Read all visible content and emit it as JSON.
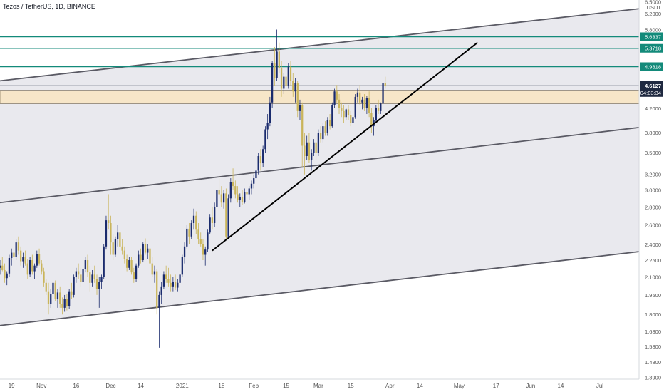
{
  "header": {
    "title": "Tezos / TetherUS, 1D, BINANCE"
  },
  "colors": {
    "up": "#1a2b6d",
    "down": "#c9b45a",
    "channel_fill": "#e9e9ee",
    "channel_line": "#5a5a64",
    "teal": "#138a7a",
    "zone": "#f7e6c8",
    "trend": "#000000"
  },
  "chart_data": {
    "type": "candlestick",
    "title": "Tezos / TetherUS, 1D, BINANCE",
    "y_scale": "log",
    "ylim": [
      1.38,
      6.55
    ],
    "x_range": [
      "2020-10-14",
      "2021-07-18"
    ],
    "currency_label": "USDT",
    "y_ticks": [
      "1.3900",
      "1.4800",
      "1.5800",
      "1.6800",
      "1.8000",
      "1.9500",
      "2.1000",
      "2.2500",
      "2.4000",
      "2.6000",
      "2.8000",
      "3.0000",
      "3.2000",
      "3.5000",
      "3.8000",
      "4.2000",
      "5.8000",
      "6.2000",
      "6.5000"
    ],
    "x_ticks": [
      "19",
      "Nov",
      "16",
      "Dec",
      "14",
      "2021",
      "18",
      "Feb",
      "15",
      "Mar",
      "15",
      "Apr",
      "14",
      "May",
      "17",
      "Jun",
      "14",
      "Jul"
    ],
    "x_tick_dates": [
      "2020-10-19",
      "2020-11-01",
      "2020-11-16",
      "2020-12-01",
      "2020-12-14",
      "2021-01-01",
      "2021-01-18",
      "2021-02-01",
      "2021-02-15",
      "2021-03-01",
      "2021-03-15",
      "2021-04-01",
      "2021-04-14",
      "2021-05-01",
      "2021-05-17",
      "2021-06-01",
      "2021-06-14",
      "2021-07-01"
    ],
    "horizontal_levels": [
      {
        "label": "5.6337",
        "value": 5.6337,
        "style": "teal"
      },
      {
        "label": "5.3718",
        "value": 5.3718,
        "style": "teal"
      },
      {
        "label": "4.9818",
        "value": 4.9818,
        "style": "teal"
      }
    ],
    "last_price": {
      "label": "4.6127",
      "value": 4.6127,
      "countdown": "04:03:34"
    },
    "zone": {
      "from": 4.28,
      "to": 4.52
    },
    "channels": [
      {
        "name": "upper",
        "p1": [
          "2020-10-14",
          4.7
        ],
        "p2": [
          "2021-07-18",
          6.32
        ]
      },
      {
        "name": "middle",
        "p1": [
          "2020-10-14",
          2.85
        ],
        "p2": [
          "2021-07-18",
          3.88
        ]
      },
      {
        "name": "lower",
        "p1": [
          "2020-10-14",
          1.72
        ],
        "p2": [
          "2021-07-18",
          2.33
        ]
      }
    ],
    "trendline": {
      "p1": [
        "2021-01-14",
        2.34
      ],
      "p2": [
        "2021-05-09",
        5.5
      ]
    },
    "candles": [
      [
        "2020-10-14",
        2.18,
        2.25,
        2.12,
        2.2
      ],
      [
        "2020-10-15",
        2.2,
        2.28,
        2.15,
        2.16
      ],
      [
        "2020-10-16",
        2.16,
        2.22,
        2.05,
        2.09
      ],
      [
        "2020-10-17",
        2.09,
        2.15,
        2.03,
        2.13
      ],
      [
        "2020-10-18",
        2.13,
        2.3,
        2.1,
        2.27
      ],
      [
        "2020-10-19",
        2.27,
        2.36,
        2.2,
        2.32
      ],
      [
        "2020-10-20",
        2.32,
        2.4,
        2.25,
        2.28
      ],
      [
        "2020-10-21",
        2.28,
        2.45,
        2.25,
        2.42
      ],
      [
        "2020-10-22",
        2.42,
        2.48,
        2.3,
        2.34
      ],
      [
        "2020-10-23",
        2.34,
        2.38,
        2.2,
        2.24
      ],
      [
        "2020-10-24",
        2.24,
        2.32,
        2.18,
        2.28
      ],
      [
        "2020-10-25",
        2.28,
        2.34,
        2.2,
        2.22
      ],
      [
        "2020-10-26",
        2.22,
        2.26,
        2.08,
        2.12
      ],
      [
        "2020-10-27",
        2.12,
        2.28,
        2.1,
        2.25
      ],
      [
        "2020-10-28",
        2.25,
        2.3,
        2.12,
        2.15
      ],
      [
        "2020-10-29",
        2.15,
        2.22,
        2.08,
        2.2
      ],
      [
        "2020-10-30",
        2.2,
        2.34,
        2.18,
        2.31
      ],
      [
        "2020-10-31",
        2.31,
        2.36,
        2.2,
        2.22
      ],
      [
        "2020-11-01",
        2.22,
        2.25,
        2.12,
        2.15
      ],
      [
        "2020-11-02",
        2.15,
        2.18,
        2.02,
        2.05
      ],
      [
        "2020-11-03",
        2.05,
        2.08,
        1.95,
        1.98
      ],
      [
        "2020-11-04",
        1.98,
        2.05,
        1.8,
        1.88
      ],
      [
        "2020-11-05",
        1.88,
        2.0,
        1.85,
        1.96
      ],
      [
        "2020-11-06",
        1.96,
        2.08,
        1.92,
        2.05
      ],
      [
        "2020-11-07",
        2.05,
        2.07,
        1.9,
        1.92
      ],
      [
        "2020-11-08",
        1.92,
        2.0,
        1.85,
        1.97
      ],
      [
        "2020-11-09",
        1.97,
        2.02,
        1.85,
        1.88
      ],
      [
        "2020-11-10",
        1.88,
        1.93,
        1.8,
        1.85
      ],
      [
        "2020-11-11",
        1.85,
        1.95,
        1.82,
        1.92
      ],
      [
        "2020-11-12",
        1.92,
        1.96,
        1.83,
        1.86
      ],
      [
        "2020-11-13",
        1.86,
        2.0,
        1.84,
        1.98
      ],
      [
        "2020-11-14",
        1.98,
        2.05,
        1.92,
        1.95
      ],
      [
        "2020-11-15",
        1.95,
        2.12,
        1.93,
        2.1
      ],
      [
        "2020-11-16",
        2.1,
        2.18,
        2.05,
        2.15
      ],
      [
        "2020-11-17",
        2.15,
        2.22,
        2.08,
        2.12
      ],
      [
        "2020-11-18",
        2.12,
        2.18,
        2.02,
        2.06
      ],
      [
        "2020-11-19",
        2.06,
        2.2,
        2.04,
        2.17
      ],
      [
        "2020-11-20",
        2.17,
        2.28,
        2.14,
        2.25
      ],
      [
        "2020-11-21",
        2.25,
        2.3,
        2.1,
        2.14
      ],
      [
        "2020-11-22",
        2.14,
        2.2,
        1.98,
        2.05
      ],
      [
        "2020-11-23",
        2.05,
        2.16,
        2.02,
        2.12
      ],
      [
        "2020-11-24",
        2.12,
        2.2,
        2.05,
        2.08
      ],
      [
        "2020-11-25",
        2.08,
        2.12,
        1.95,
        2.0
      ],
      [
        "2020-11-26",
        2.0,
        2.1,
        1.85,
        2.06
      ],
      [
        "2020-11-27",
        2.06,
        2.12,
        2.0,
        2.1
      ],
      [
        "2020-11-28",
        2.1,
        2.4,
        2.08,
        2.38
      ],
      [
        "2020-11-29",
        2.38,
        2.7,
        2.35,
        2.65
      ],
      [
        "2020-11-30",
        2.65,
        2.95,
        2.55,
        2.62
      ],
      [
        "2020-12-01",
        2.62,
        2.7,
        2.3,
        2.42
      ],
      [
        "2020-12-02",
        2.42,
        2.5,
        2.25,
        2.3
      ],
      [
        "2020-12-03",
        2.3,
        2.48,
        2.28,
        2.45
      ],
      [
        "2020-12-04",
        2.45,
        2.6,
        2.38,
        2.52
      ],
      [
        "2020-12-05",
        2.52,
        2.55,
        2.35,
        2.38
      ],
      [
        "2020-12-06",
        2.38,
        2.45,
        2.3,
        2.34
      ],
      [
        "2020-12-07",
        2.34,
        2.38,
        2.22,
        2.26
      ],
      [
        "2020-12-08",
        2.26,
        2.3,
        2.15,
        2.18
      ],
      [
        "2020-12-09",
        2.18,
        2.28,
        2.16,
        2.25
      ],
      [
        "2020-12-10",
        2.25,
        2.28,
        2.12,
        2.14
      ],
      [
        "2020-12-11",
        2.14,
        2.18,
        2.05,
        2.08
      ],
      [
        "2020-12-12",
        2.08,
        2.22,
        2.06,
        2.2
      ],
      [
        "2020-12-13",
        2.2,
        2.34,
        2.18,
        2.3
      ],
      [
        "2020-12-14",
        2.3,
        2.36,
        2.22,
        2.25
      ],
      [
        "2020-12-15",
        2.25,
        2.42,
        2.23,
        2.4
      ],
      [
        "2020-12-16",
        2.4,
        2.46,
        2.3,
        2.32
      ],
      [
        "2020-12-17",
        2.32,
        2.4,
        2.26,
        2.36
      ],
      [
        "2020-12-18",
        2.36,
        2.38,
        2.2,
        2.22
      ],
      [
        "2020-12-19",
        2.22,
        2.28,
        2.1,
        2.12
      ],
      [
        "2020-12-20",
        2.12,
        2.2,
        2.05,
        2.15
      ],
      [
        "2020-12-21",
        2.15,
        2.17,
        1.8,
        1.85
      ],
      [
        "2020-12-22",
        1.85,
        1.98,
        1.57,
        1.95
      ],
      [
        "2020-12-23",
        1.95,
        2.06,
        1.88,
        2.02
      ],
      [
        "2020-12-24",
        2.02,
        2.15,
        2.0,
        2.12
      ],
      [
        "2020-12-25",
        2.12,
        2.2,
        2.05,
        2.08
      ],
      [
        "2020-12-26",
        2.08,
        2.18,
        2.02,
        2.05
      ],
      [
        "2020-12-27",
        2.05,
        2.12,
        1.98,
        2.02
      ],
      [
        "2020-12-28",
        2.02,
        2.1,
        1.98,
        2.06
      ],
      [
        "2020-12-29",
        2.06,
        2.12,
        1.99,
        2.01
      ],
      [
        "2020-12-30",
        2.01,
        2.08,
        1.98,
        2.05
      ],
      [
        "2020-12-31",
        2.05,
        2.15,
        2.03,
        2.12
      ],
      [
        "2021-01-01",
        2.12,
        2.3,
        2.1,
        2.28
      ],
      [
        "2021-01-02",
        2.28,
        2.42,
        2.22,
        2.38
      ],
      [
        "2021-01-03",
        2.38,
        2.6,
        2.36,
        2.56
      ],
      [
        "2021-01-04",
        2.56,
        2.62,
        2.4,
        2.48
      ],
      [
        "2021-01-05",
        2.48,
        2.65,
        2.45,
        2.62
      ],
      [
        "2021-01-06",
        2.62,
        2.78,
        2.55,
        2.7
      ],
      [
        "2021-01-07",
        2.7,
        2.75,
        2.5,
        2.55
      ],
      [
        "2021-01-08",
        2.55,
        2.62,
        2.4,
        2.45
      ],
      [
        "2021-01-09",
        2.45,
        2.52,
        2.38,
        2.4
      ],
      [
        "2021-01-10",
        2.4,
        2.45,
        2.25,
        2.3
      ],
      [
        "2021-01-11",
        2.3,
        2.38,
        2.2,
        2.35
      ],
      [
        "2021-01-12",
        2.35,
        2.55,
        2.33,
        2.52
      ],
      [
        "2021-01-13",
        2.52,
        2.72,
        2.5,
        2.68
      ],
      [
        "2021-01-14",
        2.68,
        2.8,
        2.55,
        2.62
      ],
      [
        "2021-01-15",
        2.62,
        2.85,
        2.58,
        2.8
      ],
      [
        "2021-01-16",
        2.8,
        3.05,
        2.75,
        3.0
      ],
      [
        "2021-01-17",
        3.0,
        3.18,
        2.9,
        2.95
      ],
      [
        "2021-01-18",
        2.95,
        3.05,
        2.8,
        2.85
      ],
      [
        "2021-01-19",
        2.85,
        3.0,
        2.78,
        2.96
      ],
      [
        "2021-01-20",
        2.96,
        3.02,
        2.45,
        2.48
      ],
      [
        "2021-01-21",
        2.48,
        2.95,
        2.45,
        2.9
      ],
      [
        "2021-01-22",
        2.9,
        3.15,
        2.85,
        3.1
      ],
      [
        "2021-01-23",
        3.1,
        3.28,
        3.0,
        3.05
      ],
      [
        "2021-01-24",
        3.05,
        3.12,
        2.9,
        2.95
      ],
      [
        "2021-01-25",
        2.95,
        3.05,
        2.85,
        2.88
      ],
      [
        "2021-01-26",
        2.88,
        2.96,
        2.8,
        2.92
      ],
      [
        "2021-01-27",
        2.92,
        3.0,
        2.82,
        2.86
      ],
      [
        "2021-01-28",
        2.86,
        3.02,
        2.84,
        2.98
      ],
      [
        "2021-01-29",
        2.98,
        3.1,
        2.9,
        2.95
      ],
      [
        "2021-01-30",
        2.95,
        3.05,
        2.88,
        3.02
      ],
      [
        "2021-01-31",
        3.02,
        3.12,
        2.95,
        3.08
      ],
      [
        "2021-02-01",
        3.08,
        3.2,
        3.02,
        3.15
      ],
      [
        "2021-02-02",
        3.15,
        3.3,
        3.1,
        3.25
      ],
      [
        "2021-02-03",
        3.25,
        3.5,
        3.2,
        3.45
      ],
      [
        "2021-02-04",
        3.45,
        3.55,
        3.25,
        3.35
      ],
      [
        "2021-02-05",
        3.35,
        3.6,
        3.3,
        3.55
      ],
      [
        "2021-02-06",
        3.55,
        3.9,
        3.5,
        3.85
      ],
      [
        "2021-02-07",
        3.85,
        4.1,
        3.7,
        3.95
      ],
      [
        "2021-02-08",
        3.95,
        4.4,
        3.9,
        4.3
      ],
      [
        "2021-02-09",
        4.3,
        5.1,
        4.2,
        5.05
      ],
      [
        "2021-02-10",
        5.05,
        5.4,
        4.6,
        4.75
      ],
      [
        "2021-02-11",
        4.75,
        5.8,
        4.7,
        5.3
      ],
      [
        "2021-02-12",
        5.3,
        5.5,
        4.85,
        4.95
      ],
      [
        "2021-02-13",
        4.95,
        5.1,
        4.4,
        4.55
      ],
      [
        "2021-02-14",
        4.55,
        4.85,
        4.45,
        4.78
      ],
      [
        "2021-02-15",
        4.78,
        4.9,
        4.5,
        4.6
      ],
      [
        "2021-02-16",
        4.6,
        5.05,
        4.55,
        4.98
      ],
      [
        "2021-02-17",
        4.98,
        5.1,
        4.6,
        4.7
      ],
      [
        "2021-02-18",
        4.7,
        4.85,
        4.4,
        4.5
      ],
      [
        "2021-02-19",
        4.5,
        4.75,
        4.3,
        4.65
      ],
      [
        "2021-02-20",
        4.65,
        4.7,
        4.05,
        4.15
      ],
      [
        "2021-02-21",
        4.15,
        4.35,
        4.0,
        4.25
      ],
      [
        "2021-02-22",
        4.25,
        4.3,
        3.3,
        3.6
      ],
      [
        "2021-02-23",
        3.6,
        3.8,
        3.2,
        3.45
      ],
      [
        "2021-02-24",
        3.45,
        3.75,
        3.4,
        3.65
      ],
      [
        "2021-02-25",
        3.65,
        3.8,
        3.35,
        3.4
      ],
      [
        "2021-02-26",
        3.4,
        3.55,
        3.25,
        3.5
      ],
      [
        "2021-02-27",
        3.5,
        3.7,
        3.45,
        3.65
      ],
      [
        "2021-02-28",
        3.65,
        3.75,
        3.4,
        3.5
      ],
      [
        "2021-03-01",
        3.5,
        3.85,
        3.45,
        3.8
      ],
      [
        "2021-03-02",
        3.8,
        3.9,
        3.65,
        3.7
      ],
      [
        "2021-03-03",
        3.7,
        3.95,
        3.65,
        3.9
      ],
      [
        "2021-03-04",
        3.9,
        3.98,
        3.75,
        3.8
      ],
      [
        "2021-03-05",
        3.8,
        4.05,
        3.75,
        4.0
      ],
      [
        "2021-03-06",
        4.0,
        4.1,
        3.85,
        3.9
      ],
      [
        "2021-03-07",
        3.9,
        4.3,
        3.88,
        4.25
      ],
      [
        "2021-03-08",
        4.25,
        4.55,
        4.2,
        4.5
      ],
      [
        "2021-03-09",
        4.5,
        4.62,
        4.3,
        4.35
      ],
      [
        "2021-03-10",
        4.35,
        4.45,
        4.1,
        4.2
      ],
      [
        "2021-03-11",
        4.2,
        4.3,
        4.05,
        4.15
      ],
      [
        "2021-03-12",
        4.15,
        4.25,
        3.95,
        4.05
      ],
      [
        "2021-03-13",
        4.05,
        4.2,
        4.0,
        4.18
      ],
      [
        "2021-03-14",
        4.18,
        4.25,
        4.0,
        4.08
      ],
      [
        "2021-03-15",
        4.08,
        4.15,
        3.9,
        3.95
      ],
      [
        "2021-03-16",
        3.95,
        4.1,
        3.92,
        4.05
      ],
      [
        "2021-03-17",
        4.05,
        4.45,
        4.02,
        4.4
      ],
      [
        "2021-03-18",
        4.4,
        4.55,
        4.3,
        4.48
      ],
      [
        "2021-03-19",
        4.48,
        4.62,
        4.25,
        4.3
      ],
      [
        "2021-03-20",
        4.3,
        4.4,
        4.18,
        4.35
      ],
      [
        "2021-03-21",
        4.35,
        4.45,
        4.15,
        4.2
      ],
      [
        "2021-03-22",
        4.2,
        4.42,
        4.1,
        4.38
      ],
      [
        "2021-03-23",
        4.38,
        4.5,
        4.05,
        4.12
      ],
      [
        "2021-03-24",
        4.12,
        4.2,
        3.8,
        3.9
      ],
      [
        "2021-03-25",
        3.9,
        4.05,
        3.75,
        4.0
      ],
      [
        "2021-03-26",
        4.0,
        4.25,
        3.98,
        4.2
      ],
      [
        "2021-03-27",
        4.2,
        4.35,
        4.1,
        4.15
      ],
      [
        "2021-03-28",
        4.15,
        4.3,
        4.1,
        4.28
      ],
      [
        "2021-03-29",
        4.28,
        4.7,
        4.25,
        4.65
      ],
      [
        "2021-03-30",
        4.65,
        4.78,
        4.55,
        4.61
      ]
    ]
  }
}
